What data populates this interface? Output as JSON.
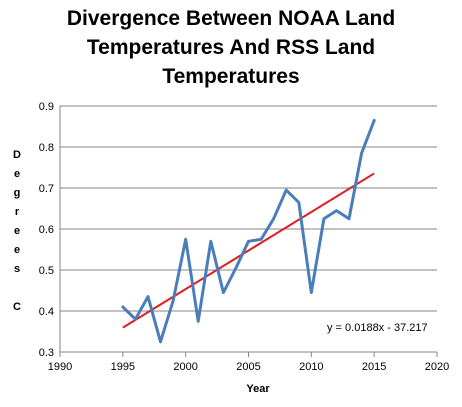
{
  "chart_data": {
    "type": "line",
    "title_lines": [
      "Divergence Between NOAA Land",
      "Temperatures And RSS Land",
      "Temperatures"
    ],
    "xlabel": "Year",
    "ylabel": "Degrees C",
    "ylabel_glyphs": [
      "D",
      "e",
      "g",
      "r",
      "e",
      "e",
      "s",
      "",
      "C"
    ],
    "xlim": [
      1990,
      2020
    ],
    "ylim": [
      0.3,
      0.9
    ],
    "x_ticks": [
      1990,
      1995,
      2000,
      2005,
      2010,
      2015,
      2020
    ],
    "y_ticks": [
      "0.3",
      "0.4",
      "0.5",
      "0.6",
      "0.7",
      "0.8",
      "0.9"
    ],
    "grid": "horizontal",
    "series": [
      {
        "color": "#4a7ebb",
        "x": [
          1995,
          1996,
          1997,
          1998,
          1999,
          2000,
          2001,
          2002,
          2003,
          2004,
          2005,
          2006,
          2007,
          2008,
          2009,
          2010,
          2011,
          2012,
          2013,
          2014,
          2015
        ],
        "y": [
          0.41,
          0.38,
          0.435,
          0.325,
          0.425,
          0.575,
          0.375,
          0.57,
          0.445,
          0.505,
          0.57,
          0.575,
          0.625,
          0.695,
          0.665,
          0.445,
          0.625,
          0.645,
          0.625,
          0.785,
          0.865
        ]
      }
    ],
    "trendline": {
      "color": "#e41a1c",
      "x": [
        1995,
        2015
      ],
      "y": [
        0.3595,
        0.7355
      ],
      "equation": "y = 0.0188x - 37.217"
    }
  }
}
